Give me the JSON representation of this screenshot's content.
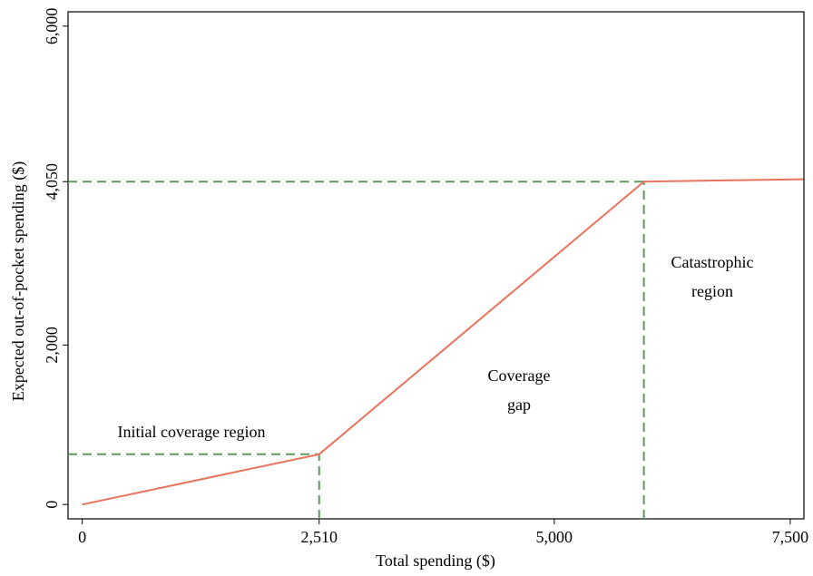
{
  "chart_data": {
    "type": "line",
    "x_label": "Total spending ($)",
    "y_label": "Expected out-of-pocket spending ($)",
    "x": [
      0,
      2510,
      5950,
      7640
    ],
    "series": [
      {
        "color": "#e8735e",
        "values": [
          0,
          630,
          4050,
          4080
        ]
      }
    ],
    "reference_color": "#5b9a5b",
    "xlim": [
      -150,
      7645
    ],
    "ylim": [
      -180,
      6180
    ],
    "xticks": [
      0,
      {
        "value": 2510,
        "label": "2,510"
      },
      {
        "value": 5000,
        "label": "5,000"
      },
      {
        "value": 7500,
        "label": "7,500"
      }
    ],
    "yticks": [
      0,
      {
        "value": 2000,
        "label": "2,000"
      },
      {
        "value": 4050,
        "label": "4,050"
      },
      {
        "value": 6000,
        "label": "6,000"
      }
    ],
    "annotations": [
      [
        "Initial coverage region"
      ],
      [
        "Coverage",
        "gap"
      ],
      [
        "Catastrophic",
        "region"
      ]
    ]
  }
}
